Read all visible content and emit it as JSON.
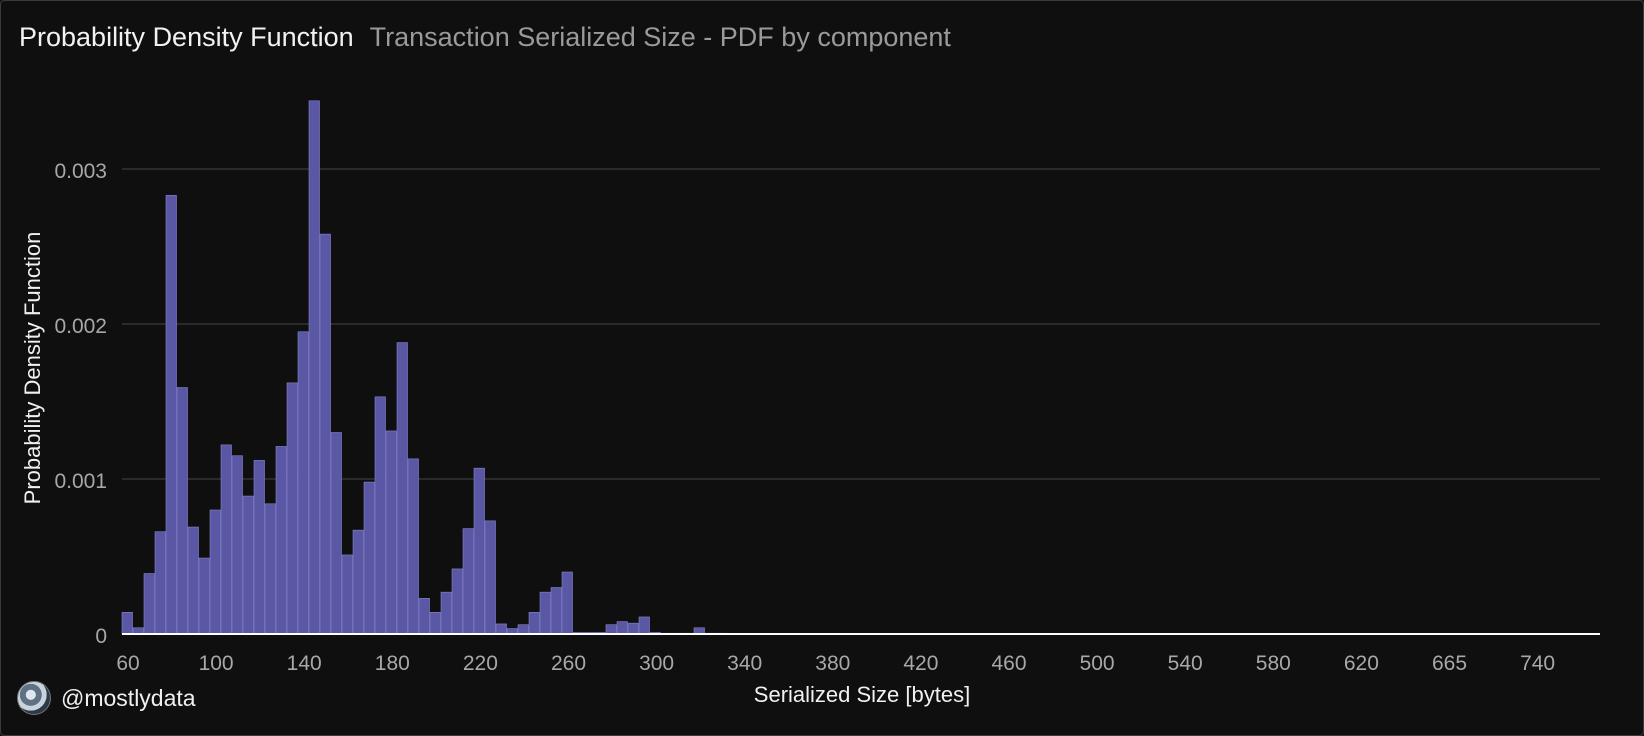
{
  "header": {
    "title": "Probability Density Function",
    "subtitle": "Transaction Serialized Size - PDF by component"
  },
  "footer": {
    "handle": "@mostlydata",
    "avatar_icon": "profile-avatar-icon"
  },
  "colors": {
    "background": "#0f0f0f",
    "bar_fill": "#5a58a4",
    "bar_stroke": "#8584cf",
    "grid": "#3b3b3b",
    "axis": "#ffffff",
    "tick_text": "#a8a8a8"
  },
  "chart_data": {
    "type": "bar",
    "title": "",
    "xlabel": "Serialized Size [bytes]",
    "ylabel": "Probability Density Function",
    "x_tick_labels": [
      "60",
      "100",
      "140",
      "180",
      "220",
      "260",
      "300",
      "340",
      "380",
      "420",
      "460",
      "500",
      "540",
      "580",
      "620",
      "665",
      "740"
    ],
    "y_ticks": [
      0,
      0.001,
      0.002,
      0.003
    ],
    "y_tick_labels": [
      "0",
      "0.001",
      "0.002",
      "0.003"
    ],
    "ylim": [
      0,
      0.0034
    ],
    "grid": true,
    "legend": "none",
    "series": [
      {
        "values": [
          0.00014,
          4e-05,
          0.00039,
          0.00066,
          0.00283,
          0.00159,
          0.00069,
          0.00049,
          0.0008,
          0.00122,
          0.00115,
          0.00089,
          0.00112,
          0.00084,
          0.00121,
          0.00162,
          0.00195,
          0.00344,
          0.00258,
          0.0013,
          0.00051,
          0.00067,
          0.00098,
          0.00153,
          0.00131,
          0.00188,
          0.00113,
          0.00023,
          0.00014,
          0.00027,
          0.00042,
          0.00068,
          0.00107,
          0.00073,
          6.5e-05,
          3.5e-05,
          6e-05,
          0.00014,
          0.00027,
          0.0003,
          0.0004,
          1e-05,
          1e-05,
          1e-05,
          6e-05,
          8e-05,
          7e-05,
          0.00011,
          1e-05,
          5e-06,
          5e-06,
          5e-06,
          4e-05,
          5e-06,
          5e-06,
          3e-06,
          3e-06,
          2e-06,
          2e-06,
          1e-06,
          1e-06,
          1e-06,
          1e-06,
          1e-06
        ]
      }
    ]
  }
}
